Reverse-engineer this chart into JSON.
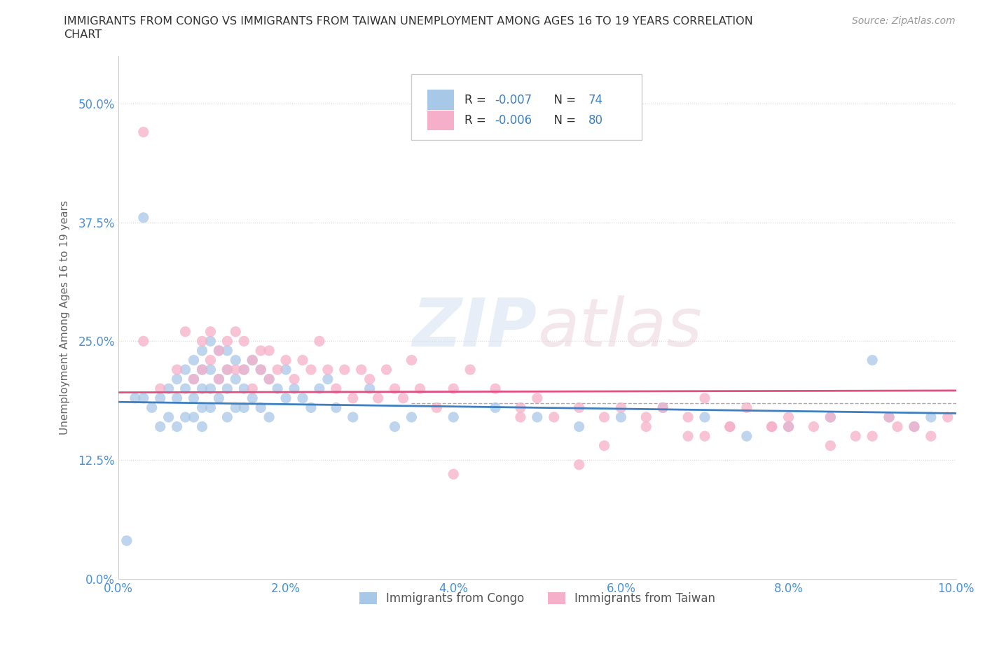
{
  "title": "IMMIGRANTS FROM CONGO VS IMMIGRANTS FROM TAIWAN UNEMPLOYMENT AMONG AGES 16 TO 19 YEARS CORRELATION\nCHART",
  "source_text": "Source: ZipAtlas.com",
  "ylabel": "Unemployment Among Ages 16 to 19 years",
  "xlim": [
    0.0,
    0.1
  ],
  "ylim": [
    0.0,
    0.55
  ],
  "yticks": [
    0.0,
    0.125,
    0.25,
    0.375,
    0.5
  ],
  "ytick_labels": [
    "0.0%",
    "12.5%",
    "25.0%",
    "37.5%",
    "50.0%"
  ],
  "xticks": [
    0.0,
    0.02,
    0.04,
    0.06,
    0.08,
    0.1
  ],
  "xtick_labels": [
    "0.0%",
    "2.0%",
    "4.0%",
    "6.0%",
    "8.0%",
    "10.0%"
  ],
  "congo_color": "#a8c8e8",
  "taiwan_color": "#f5afc8",
  "congo_line_color": "#3d7fc1",
  "taiwan_line_color": "#e05080",
  "congo_R": -0.007,
  "congo_N": 74,
  "taiwan_R": -0.006,
  "taiwan_N": 80,
  "watermark": "ZIPatlas",
  "background_color": "#ffffff",
  "grid_color": "#e0e0e0",
  "dashed_line_y": 0.185,
  "congo_x": [
    0.001,
    0.002,
    0.003,
    0.004,
    0.005,
    0.005,
    0.006,
    0.006,
    0.007,
    0.007,
    0.007,
    0.008,
    0.008,
    0.008,
    0.009,
    0.009,
    0.009,
    0.009,
    0.01,
    0.01,
    0.01,
    0.01,
    0.01,
    0.011,
    0.011,
    0.011,
    0.011,
    0.012,
    0.012,
    0.012,
    0.013,
    0.013,
    0.013,
    0.013,
    0.014,
    0.014,
    0.014,
    0.015,
    0.015,
    0.015,
    0.016,
    0.016,
    0.017,
    0.017,
    0.018,
    0.018,
    0.019,
    0.02,
    0.02,
    0.021,
    0.022,
    0.023,
    0.024,
    0.025,
    0.026,
    0.028,
    0.03,
    0.033,
    0.035,
    0.04,
    0.045,
    0.05,
    0.055,
    0.06,
    0.065,
    0.07,
    0.075,
    0.08,
    0.085,
    0.09,
    0.092,
    0.095,
    0.097,
    0.003
  ],
  "congo_y": [
    0.04,
    0.19,
    0.19,
    0.18,
    0.19,
    0.16,
    0.2,
    0.17,
    0.21,
    0.19,
    0.16,
    0.22,
    0.2,
    0.17,
    0.23,
    0.21,
    0.19,
    0.17,
    0.24,
    0.22,
    0.2,
    0.18,
    0.16,
    0.25,
    0.22,
    0.2,
    0.18,
    0.24,
    0.21,
    0.19,
    0.24,
    0.22,
    0.2,
    0.17,
    0.23,
    0.21,
    0.18,
    0.22,
    0.2,
    0.18,
    0.23,
    0.19,
    0.22,
    0.18,
    0.21,
    0.17,
    0.2,
    0.22,
    0.19,
    0.2,
    0.19,
    0.18,
    0.2,
    0.21,
    0.18,
    0.17,
    0.2,
    0.16,
    0.17,
    0.17,
    0.18,
    0.17,
    0.16,
    0.17,
    0.18,
    0.17,
    0.15,
    0.16,
    0.17,
    0.23,
    0.17,
    0.16,
    0.17,
    0.38
  ],
  "taiwan_x": [
    0.003,
    0.005,
    0.007,
    0.008,
    0.009,
    0.01,
    0.01,
    0.011,
    0.011,
    0.012,
    0.012,
    0.013,
    0.013,
    0.014,
    0.014,
    0.015,
    0.015,
    0.016,
    0.016,
    0.017,
    0.017,
    0.018,
    0.018,
    0.019,
    0.02,
    0.021,
    0.022,
    0.023,
    0.024,
    0.025,
    0.026,
    0.027,
    0.028,
    0.029,
    0.03,
    0.031,
    0.032,
    0.033,
    0.034,
    0.035,
    0.036,
    0.038,
    0.04,
    0.042,
    0.045,
    0.048,
    0.05,
    0.052,
    0.055,
    0.058,
    0.06,
    0.063,
    0.065,
    0.068,
    0.07,
    0.073,
    0.075,
    0.078,
    0.08,
    0.083,
    0.085,
    0.088,
    0.09,
    0.092,
    0.095,
    0.097,
    0.099,
    0.04,
    0.055,
    0.063,
    0.07,
    0.078,
    0.085,
    0.093,
    0.048,
    0.058,
    0.068,
    0.073,
    0.08,
    0.003
  ],
  "taiwan_y": [
    0.25,
    0.2,
    0.22,
    0.26,
    0.21,
    0.25,
    0.22,
    0.26,
    0.23,
    0.21,
    0.24,
    0.25,
    0.22,
    0.26,
    0.22,
    0.22,
    0.25,
    0.23,
    0.2,
    0.24,
    0.22,
    0.21,
    0.24,
    0.22,
    0.23,
    0.21,
    0.23,
    0.22,
    0.25,
    0.22,
    0.2,
    0.22,
    0.19,
    0.22,
    0.21,
    0.19,
    0.22,
    0.2,
    0.19,
    0.23,
    0.2,
    0.18,
    0.2,
    0.22,
    0.2,
    0.18,
    0.19,
    0.17,
    0.18,
    0.17,
    0.18,
    0.17,
    0.18,
    0.17,
    0.19,
    0.16,
    0.18,
    0.16,
    0.17,
    0.16,
    0.17,
    0.15,
    0.15,
    0.17,
    0.16,
    0.15,
    0.17,
    0.11,
    0.12,
    0.16,
    0.15,
    0.16,
    0.14,
    0.16,
    0.17,
    0.14,
    0.15,
    0.16,
    0.16,
    0.47
  ]
}
